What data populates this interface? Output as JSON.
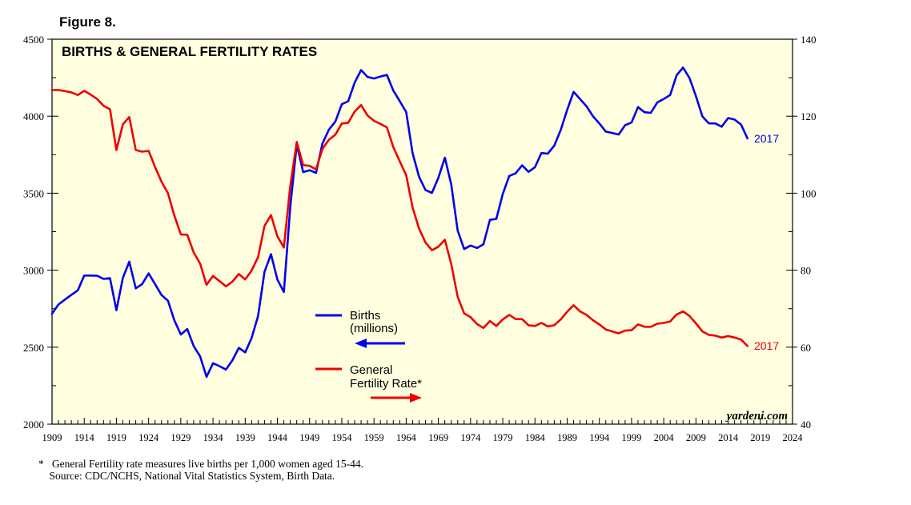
{
  "figure_label": "Figure 8.",
  "footnote": {
    "marker": "*",
    "line1": "General Fertility rate measures live births per 1,000 women aged 15-44.",
    "line2": "Source: CDC/NCHS, National Vital Statistics System, Birth Data."
  },
  "colors": {
    "plot_bg": "#ffffe0",
    "births": "#0000ee",
    "fertility": "#ee0000"
  },
  "chart_data": {
    "type": "line",
    "title": "BIRTHS & GENERAL FERTILITY RATES",
    "watermark": "yardeni.com",
    "x_ticks": [
      "1909",
      "1914",
      "1919",
      "1924",
      "1929",
      "1934",
      "1939",
      "1944",
      "1949",
      "1954",
      "1959",
      "1964",
      "1969",
      "1974",
      "1979",
      "1984",
      "1989",
      "1994",
      "1999",
      "2004",
      "2009",
      "2014",
      "2019",
      "2024"
    ],
    "xlim": [
      1909,
      2024
    ],
    "left_axis": {
      "ylim": [
        2000,
        4500
      ],
      "ticks": [
        "2000",
        "2500",
        "3000",
        "3500",
        "4000",
        "4500"
      ]
    },
    "right_axis": {
      "ylim": [
        40,
        140
      ],
      "ticks": [
        "40",
        "60",
        "80",
        "100",
        "120",
        "140"
      ]
    },
    "legend": [
      {
        "label_line1": "Births",
        "label_line2": "(millions)",
        "arrow": "left"
      },
      {
        "label_line1": "General",
        "label_line2": "Fertility Rate*",
        "arrow": "right"
      }
    ],
    "series": [
      {
        "name": "Births (millions)",
        "axis": "left",
        "end_label": "2017",
        "x": [
          1909,
          1910,
          1911,
          1912,
          1913,
          1914,
          1915,
          1916,
          1917,
          1918,
          1919,
          1920,
          1921,
          1922,
          1923,
          1924,
          1925,
          1926,
          1927,
          1928,
          1929,
          1930,
          1931,
          1932,
          1933,
          1934,
          1935,
          1936,
          1937,
          1938,
          1939,
          1940,
          1941,
          1942,
          1943,
          1944,
          1945,
          1946,
          1947,
          1948,
          1949,
          1950,
          1951,
          1952,
          1953,
          1954,
          1955,
          1956,
          1957,
          1958,
          1959,
          1960,
          1961,
          1962,
          1963,
          1964,
          1965,
          1966,
          1967,
          1968,
          1969,
          1970,
          1971,
          1972,
          1973,
          1974,
          1975,
          1976,
          1977,
          1978,
          1979,
          1980,
          1981,
          1982,
          1983,
          1984,
          1985,
          1986,
          1987,
          1988,
          1989,
          1990,
          1991,
          1992,
          1993,
          1994,
          1995,
          1996,
          1997,
          1998,
          1999,
          2000,
          2001,
          2002,
          2003,
          2004,
          2005,
          2006,
          2007,
          2008,
          2009,
          2010,
          2011,
          2012,
          2013,
          2014,
          2015,
          2016,
          2017
        ],
        "values": [
          2718,
          2777,
          2809,
          2840,
          2869,
          2965,
          2965,
          2964,
          2944,
          2948,
          2740,
          2950,
          3055,
          2882,
          2910,
          2979,
          2909,
          2839,
          2802,
          2674,
          2582,
          2618,
          2506,
          2440,
          2307,
          2396,
          2377,
          2355,
          2413,
          2496,
          2466,
          2559,
          2703,
          2989,
          3104,
          2939,
          2858,
          3411,
          3817,
          3637,
          3649,
          3632,
          3823,
          3913,
          3965,
          4078,
          4097,
          4218,
          4300,
          4255,
          4245,
          4258,
          4268,
          4167,
          4098,
          4027,
          3760,
          3606,
          3521,
          3502,
          3600,
          3731,
          3556,
          3258,
          3137,
          3160,
          3144,
          3168,
          3327,
          3333,
          3494,
          3612,
          3629,
          3681,
          3639,
          3669,
          3761,
          3757,
          3809,
          3910,
          4041,
          4158,
          4111,
          4065,
          4000,
          3953,
          3900,
          3891,
          3881,
          3942,
          3959,
          4059,
          4026,
          4022,
          4090,
          4112,
          4138,
          4266,
          4316,
          4248,
          4131,
          3999,
          3954,
          3953,
          3932,
          3988,
          3978,
          3946,
          3856
        ]
      },
      {
        "name": "General Fertility Rate",
        "axis": "right",
        "end_label": "2017",
        "x": [
          1909,
          1910,
          1911,
          1912,
          1913,
          1914,
          1915,
          1916,
          1917,
          1918,
          1919,
          1920,
          1921,
          1922,
          1923,
          1924,
          1925,
          1926,
          1927,
          1928,
          1929,
          1930,
          1931,
          1932,
          1933,
          1934,
          1935,
          1936,
          1937,
          1938,
          1939,
          1940,
          1941,
          1942,
          1943,
          1944,
          1945,
          1946,
          1947,
          1948,
          1949,
          1950,
          1951,
          1952,
          1953,
          1954,
          1955,
          1956,
          1957,
          1958,
          1959,
          1960,
          1961,
          1962,
          1963,
          1964,
          1965,
          1966,
          1967,
          1968,
          1969,
          1970,
          1971,
          1972,
          1973,
          1974,
          1975,
          1976,
          1977,
          1978,
          1979,
          1980,
          1981,
          1982,
          1983,
          1984,
          1985,
          1986,
          1987,
          1988,
          1989,
          1990,
          1991,
          1992,
          1993,
          1994,
          1995,
          1996,
          1997,
          1998,
          1999,
          2000,
          2001,
          2002,
          2003,
          2004,
          2005,
          2006,
          2007,
          2008,
          2009,
          2010,
          2011,
          2012,
          2013,
          2014,
          2015,
          2016,
          2017
        ],
        "values": [
          126.8,
          126.8,
          126.5,
          126.2,
          125.5,
          126.6,
          125.6,
          124.5,
          122.7,
          121.8,
          111.2,
          117.9,
          119.8,
          111.2,
          110.8,
          111.0,
          106.8,
          103.0,
          100.0,
          94.2,
          89.3,
          89.2,
          84.6,
          81.7,
          76.2,
          78.5,
          77.2,
          75.8,
          77.0,
          79.0,
          77.6,
          79.9,
          83.4,
          91.5,
          94.3,
          88.8,
          85.9,
          101.9,
          113.3,
          107.3,
          107.1,
          106.2,
          111.5,
          113.9,
          115.2,
          118.1,
          118.3,
          121.2,
          122.9,
          120.2,
          118.8,
          118.0,
          117.1,
          112.0,
          108.3,
          104.7,
          96.3,
          90.8,
          87.2,
          85.2,
          86.1,
          87.9,
          81.6,
          73.1,
          68.8,
          67.8,
          66.0,
          65.0,
          66.8,
          65.5,
          67.2,
          68.4,
          67.3,
          67.3,
          65.7,
          65.5,
          66.3,
          65.4,
          65.7,
          67.2,
          69.2,
          70.9,
          69.3,
          68.4,
          67.0,
          65.9,
          64.6,
          64.1,
          63.6,
          64.3,
          64.4,
          65.9,
          65.3,
          65.3,
          66.1,
          66.3,
          66.7,
          68.5,
          69.3,
          68.1,
          66.2,
          64.1,
          63.2,
          63.0,
          62.5,
          62.9,
          62.5,
          62.0,
          60.3
        ]
      }
    ]
  }
}
